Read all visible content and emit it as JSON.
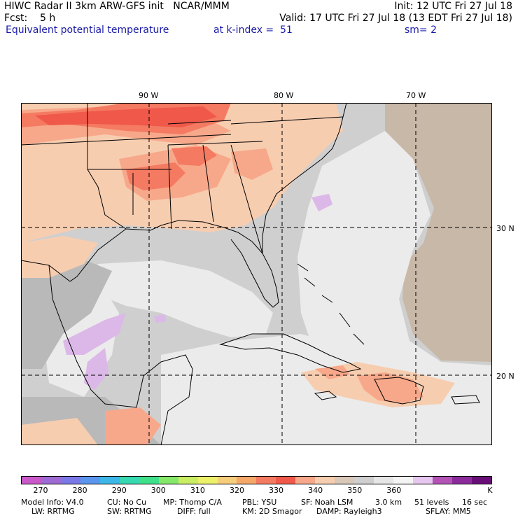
{
  "header": {
    "line1_left": "HIWC Radar II 3km ARW-GFS init   NCAR/MMM",
    "line1_right": "Init: 12 UTC Fri 27 Jul 18",
    "line2_left": "Fcst:    5 h",
    "line2_right": "Valid: 17 UTC Fri 27 Jul 18 (13 EDT Fri 27 Jul 18)",
    "line3_field": "Equivalent potential temperature",
    "line3_level": "at k-index =  51",
    "line3_smooth": "sm= 2"
  },
  "map": {
    "lon_labels": [
      "90 W",
      "80 W",
      "70 W"
    ],
    "lat_labels": [
      "30 N",
      "20 N"
    ],
    "colors": {
      "gray": "#cfcfcf",
      "lightgray": "#ebebeb",
      "darkgray": "#b9b9b9",
      "tan": "#c8b8a8",
      "peach": "#f7cdb0",
      "salmon": "#f7a88a",
      "coral": "#f47a62",
      "red": "#f0584a",
      "lavender": "#dcb8e8",
      "border": "#000000"
    }
  },
  "colorbar": {
    "colors": [
      "#c959c9",
      "#9e6bd4",
      "#7b79e8",
      "#5b96ee",
      "#3cb7e8",
      "#36d9b0",
      "#3fe08a",
      "#86e86b",
      "#c9ed63",
      "#edf06b",
      "#f6cd7a",
      "#f4a869",
      "#f47a62",
      "#f0584a",
      "#f7a88a",
      "#f7cdb0",
      "#d9c7b8",
      "#cfcfcf",
      "#e6e6e6",
      "#f4f4f4",
      "#e7c6ef",
      "#b253b5",
      "#8b2b9b",
      "#6a0e77"
    ],
    "labels": [
      "270",
      "280",
      "290",
      "300",
      "310",
      "320",
      "330",
      "340",
      "350",
      "360",
      "K"
    ]
  },
  "footer": {
    "line1": [
      "Model Info: V4.0",
      "CU: No Cu",
      "MP: Thomp C/A",
      "PBL: YSU",
      "SF: Noah LSM",
      "3.0 km",
      "51 levels",
      "16 sec"
    ],
    "line2": [
      "LW: RRTMG",
      "SW: RRTMG",
      "DIFF: full",
      "KM: 2D Smagor",
      "DAMP: Rayleigh3",
      "SFLAY: MM5"
    ]
  }
}
